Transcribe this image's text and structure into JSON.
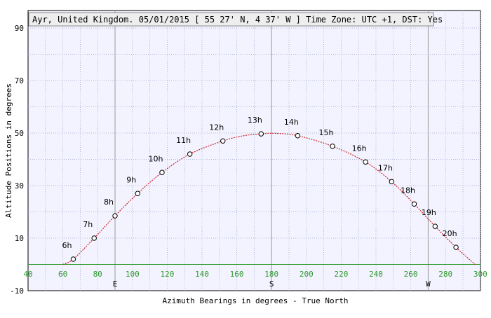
{
  "chart_data": {
    "type": "scatter",
    "title": "Ayr, United Kingdom. 05/01/2015 [ 55 27' N, 4 37' W ] Time Zone: UTC +1, DST: Yes",
    "xlabel": "Azimuth Bearings in degrees - True North",
    "ylabel": "Altitude Positions in degrees",
    "xlim": [
      40,
      310
    ],
    "ylim": [
      -10,
      90
    ],
    "x_ticks": [
      "40",
      "60",
      "80",
      "100",
      "120",
      "140",
      "160",
      "180",
      "200",
      "220",
      "240",
      "260",
      "280",
      "300"
    ],
    "y_ticks": [
      "90",
      "70",
      "50",
      "30",
      "10",
      "-10"
    ],
    "compass_marks": [
      {
        "label": "E",
        "x": 90
      },
      {
        "label": "S",
        "x": 180
      },
      {
        "label": "W",
        "x": 270
      }
    ],
    "grid": true,
    "series": [
      {
        "points": [
          {
            "label": "6h",
            "x": 66,
            "y": 2
          },
          {
            "label": "7h",
            "x": 78,
            "y": 10
          },
          {
            "label": "8h",
            "x": 90,
            "y": 18.5
          },
          {
            "label": "9h",
            "x": 103,
            "y": 27
          },
          {
            "label": "10h",
            "x": 117,
            "y": 35
          },
          {
            "label": "11h",
            "x": 133,
            "y": 42
          },
          {
            "label": "12h",
            "x": 152,
            "y": 47
          },
          {
            "label": "13h",
            "x": 174,
            "y": 49.7
          },
          {
            "label": "14h",
            "x": 195,
            "y": 49
          },
          {
            "label": "15h",
            "x": 215,
            "y": 45
          },
          {
            "label": "16h",
            "x": 234,
            "y": 39
          },
          {
            "label": "17h",
            "x": 249,
            "y": 31.5
          },
          {
            "label": "18h",
            "x": 262,
            "y": 23
          },
          {
            "label": "19h",
            "x": 274,
            "y": 14.5
          },
          {
            "label": "20h",
            "x": 286,
            "y": 6.5
          }
        ],
        "path": [
          [
            60,
            0
          ],
          [
            66,
            2
          ],
          [
            78,
            10
          ],
          [
            90,
            18.5
          ],
          [
            103,
            27
          ],
          [
            117,
            35
          ],
          [
            133,
            42
          ],
          [
            152,
            47
          ],
          [
            164,
            49
          ],
          [
            174,
            49.7
          ],
          [
            182,
            49.9
          ],
          [
            195,
            49
          ],
          [
            215,
            45
          ],
          [
            234,
            39
          ],
          [
            249,
            31.5
          ],
          [
            262,
            23
          ],
          [
            274,
            14.5
          ],
          [
            286,
            6.5
          ],
          [
            297,
            0
          ]
        ]
      }
    ],
    "colors": {
      "plot_background": "#f3f3ff",
      "grid": "#9aa2c8",
      "meridian": "#9a9a9a",
      "horizon": "#2e9a2e",
      "curve": "#cc2222",
      "marker_fill": "#ffffff",
      "marker_stroke": "#000000"
    }
  }
}
